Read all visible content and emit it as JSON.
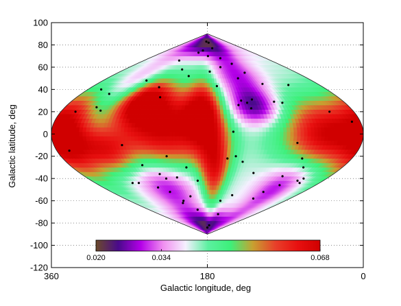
{
  "chart_data": {
    "type": "heatmap",
    "projection": "sinusoidal (equal-area) all-sky map",
    "title": "",
    "xlabel": "Galactic longitude, deg",
    "ylabel": "Galactic latitude, deg",
    "xlim": [
      360,
      0
    ],
    "ylim": [
      -120,
      100
    ],
    "x_ticks": [
      360,
      180,
      0
    ],
    "y_ticks": [
      100,
      80,
      60,
      40,
      20,
      0,
      -20,
      -40,
      -60,
      -80,
      -100,
      -120
    ],
    "grid": true,
    "colorbar": {
      "orientation": "horizontal",
      "range": [
        0.02,
        0.068
      ],
      "tick_values": [
        0.02,
        0.034,
        0.068
      ],
      "tick_labels": [
        "0.020",
        "0.034",
        "0.068"
      ],
      "colormap": [
        "#6b4a2a",
        "#4a0a8c",
        "#b400e8",
        "#f08ff0",
        "#f5f0ff",
        "#5cf0a0",
        "#3df07a",
        "#c8a030",
        "#e8402a",
        "#e81010",
        "#d00000"
      ]
    },
    "field_blobs": [
      {
        "l": 230,
        "b": 5,
        "value": 0.068,
        "sl": 40,
        "sb": 28
      },
      {
        "l": 265,
        "b": 30,
        "value": 0.066,
        "sl": 22,
        "sb": 14
      },
      {
        "l": 40,
        "b": 0,
        "value": 0.068,
        "sl": 38,
        "sb": 22
      },
      {
        "l": 345,
        "b": 0,
        "value": 0.064,
        "sl": 22,
        "sb": 28
      },
      {
        "l": 185,
        "b": 20,
        "value": 0.062,
        "sl": 16,
        "sb": 20
      },
      {
        "l": 170,
        "b": -30,
        "value": 0.062,
        "sl": 14,
        "sb": 24
      },
      {
        "l": 300,
        "b": -15,
        "value": 0.058,
        "sl": 22,
        "sb": 14
      },
      {
        "l": 120,
        "b": 25,
        "value": 0.024,
        "sl": 22,
        "sb": 12
      },
      {
        "l": 245,
        "b": -45,
        "value": 0.026,
        "sl": 34,
        "sb": 18
      },
      {
        "l": 60,
        "b": -45,
        "value": 0.028,
        "sl": 26,
        "sb": 18
      },
      {
        "l": 195,
        "b": 82,
        "value": 0.021,
        "sl": 90,
        "sb": 9
      },
      {
        "l": 180,
        "b": -82,
        "value": 0.022,
        "sl": 90,
        "sb": 9
      },
      {
        "l": 125,
        "b": 55,
        "value": 0.03,
        "sl": 32,
        "sb": 14
      },
      {
        "l": 290,
        "b": 45,
        "value": 0.033,
        "sl": 40,
        "sb": 15
      }
    ],
    "points": [
      {
        "l": 190,
        "b": 83
      },
      {
        "l": 170,
        "b": 82
      },
      {
        "l": 200,
        "b": 75
      },
      {
        "l": 155,
        "b": 77
      },
      {
        "l": 215,
        "b": 73
      },
      {
        "l": 178,
        "b": 70
      },
      {
        "l": 140,
        "b": 68
      },
      {
        "l": 260,
        "b": 66
      },
      {
        "l": 118,
        "b": 63
      },
      {
        "l": 150,
        "b": 60
      },
      {
        "l": 235,
        "b": 58
      },
      {
        "l": 175,
        "b": 56
      },
      {
        "l": 105,
        "b": 55
      },
      {
        "l": 215,
        "b": 52
      },
      {
        "l": 125,
        "b": 50
      },
      {
        "l": 285,
        "b": 48
      },
      {
        "l": 90,
        "b": 45
      },
      {
        "l": 165,
        "b": 43
      },
      {
        "l": 255,
        "b": 42
      },
      {
        "l": 50,
        "b": 44
      },
      {
        "l": 340,
        "b": 40
      },
      {
        "l": 320,
        "b": 36
      },
      {
        "l": 245,
        "b": 33
      },
      {
        "l": 135,
        "b": 30
      },
      {
        "l": 128,
        "b": 28
      },
      {
        "l": 120,
        "b": 31
      },
      {
        "l": 82,
        "b": 28
      },
      {
        "l": 92,
        "b": 29
      },
      {
        "l": 125,
        "b": 23
      },
      {
        "l": 140,
        "b": 26
      },
      {
        "l": 320,
        "b": 24
      },
      {
        "l": 312,
        "b": 21
      },
      {
        "l": 342,
        "b": 20
      },
      {
        "l": 30,
        "b": 20
      },
      {
        "l": 10,
        "b": 11
      },
      {
        "l": 150,
        "b": 2
      },
      {
        "l": 280,
        "b": -10
      },
      {
        "l": 75,
        "b": -8
      },
      {
        "l": 345,
        "b": -15
      },
      {
        "l": 145,
        "b": -20
      },
      {
        "l": 155,
        "b": -22
      },
      {
        "l": 135,
        "b": -25
      },
      {
        "l": 230,
        "b": -20
      },
      {
        "l": 62,
        "b": -22
      },
      {
        "l": 265,
        "b": -28
      },
      {
        "l": 208,
        "b": -30
      },
      {
        "l": 248,
        "b": -36
      },
      {
        "l": 225,
        "b": -39
      },
      {
        "l": 242,
        "b": -40
      },
      {
        "l": 195,
        "b": -42
      },
      {
        "l": 115,
        "b": -35
      },
      {
        "l": 70,
        "b": -38
      },
      {
        "l": 52,
        "b": -30
      },
      {
        "l": 35,
        "b": -40
      },
      {
        "l": 40,
        "b": -42
      },
      {
        "l": 300,
        "b": -44
      },
      {
        "l": 290,
        "b": -44
      },
      {
        "l": 60,
        "b": -46
      },
      {
        "l": 32,
        "b": -44
      },
      {
        "l": 250,
        "b": -52
      },
      {
        "l": 235,
        "b": -60
      },
      {
        "l": 240,
        "b": -62
      },
      {
        "l": 265,
        "b": -48
      },
      {
        "l": 130,
        "b": -55
      },
      {
        "l": 215,
        "b": -56
      },
      {
        "l": 150,
        "b": -60
      },
      {
        "l": 75,
        "b": -52
      },
      {
        "l": 80,
        "b": -58
      },
      {
        "l": 210,
        "b": -68
      },
      {
        "l": 140,
        "b": -72
      },
      {
        "l": 165,
        "b": -82
      },
      {
        "l": 180,
        "b": -84
      }
    ]
  }
}
